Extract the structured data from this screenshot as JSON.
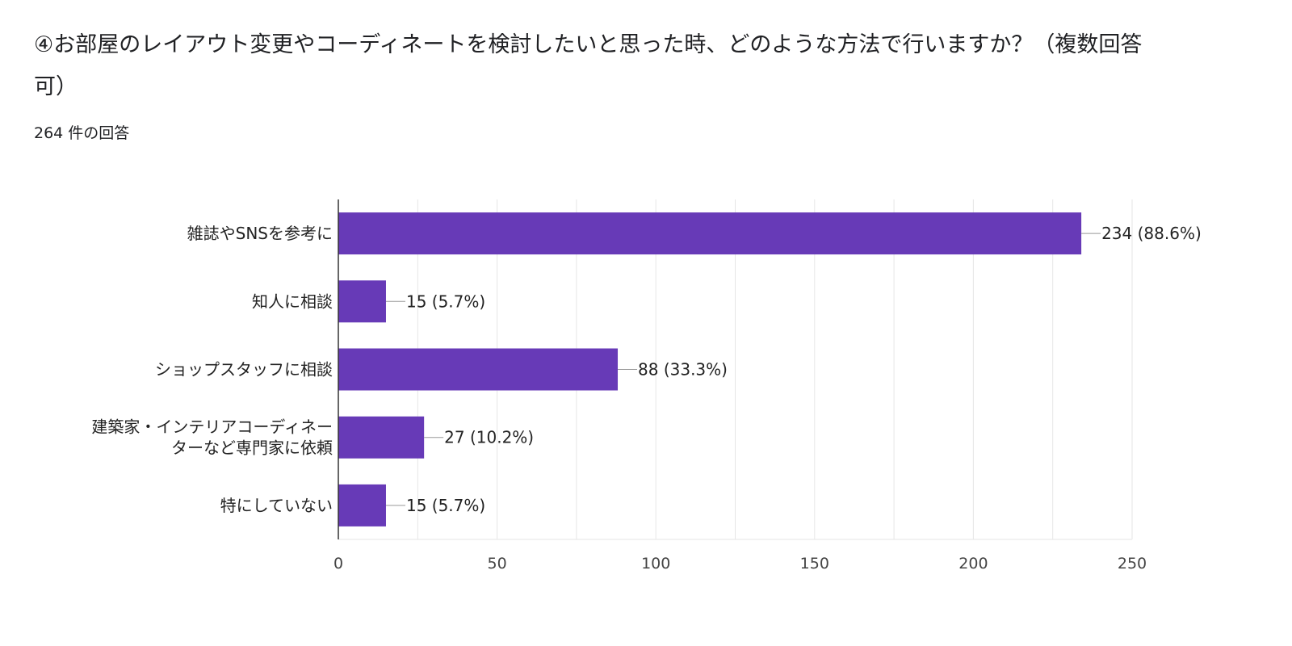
{
  "header": {
    "title": "④お部屋のレイアウト変更やコーディネートを検討したいと思った時、どのような方法で行いますか？（複数回答可）",
    "response_count": "264 件の回答"
  },
  "colors": {
    "bar": "#673ab7",
    "grid": "#e6e6e6",
    "axis": "#333333"
  },
  "chart_data": {
    "type": "bar",
    "orientation": "horizontal",
    "title": "④お部屋のレイアウト変更やコーディネートを検討したいと思った時、どのような方法で行いますか？（複数回答可）",
    "categories": [
      [
        "雑誌やSNSを参考に"
      ],
      [
        "知人に相談"
      ],
      [
        "ショップスタッフに相談"
      ],
      [
        "建築家・インテリアコーディネー",
        "ターなど専門家に依頼"
      ],
      [
        "特にしていない"
      ]
    ],
    "values": [
      234,
      15,
      88,
      27,
      15
    ],
    "value_labels": [
      "234 (88.6%)",
      "15 (5.7%)",
      "88 (33.3%)",
      "27 (10.2%)",
      "15 (5.7%)"
    ],
    "x_ticks": [
      0,
      50,
      100,
      150,
      200,
      250
    ],
    "xlim": [
      0,
      250
    ],
    "grid": true,
    "legend": "none"
  }
}
